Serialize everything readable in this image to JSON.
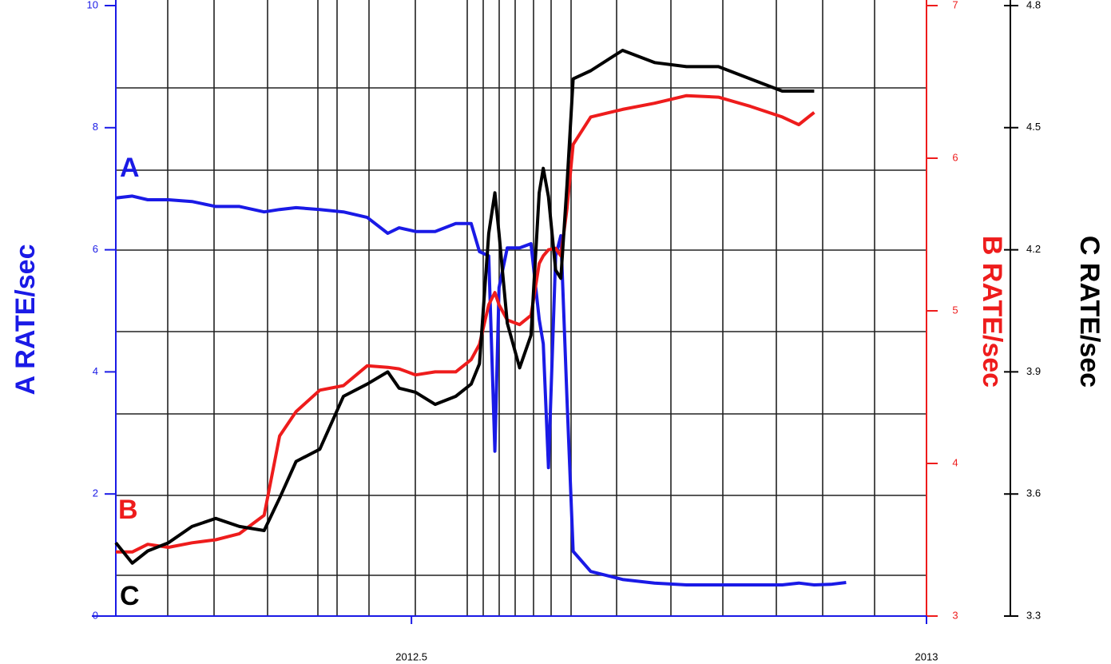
{
  "chart_data": {
    "type": "line",
    "x": [
      2012.213,
      2012.229,
      2012.244,
      2012.264,
      2012.287,
      2012.31,
      2012.333,
      2012.357,
      2012.372,
      2012.388,
      2012.411,
      2012.434,
      2012.457,
      2012.477,
      2012.488,
      2012.504,
      2012.523,
      2012.543,
      2012.558,
      2012.566,
      2012.575,
      2012.581,
      2012.585,
      2012.593,
      2012.605,
      2012.616,
      2012.624,
      2012.628,
      2012.633,
      2012.64,
      2012.645,
      2012.651,
      2012.657,
      2012.674,
      2012.705,
      2012.736,
      2012.767,
      2012.798,
      2012.829,
      2012.86,
      2012.876,
      2012.891,
      2012.907,
      2012.922
    ],
    "series": [
      {
        "name": "A",
        "color": "#1a1ae6",
        "axis": "y",
        "values": [
          6.85,
          6.88,
          6.82,
          6.82,
          6.79,
          6.71,
          6.71,
          6.62,
          6.66,
          6.69,
          6.66,
          6.62,
          6.53,
          6.27,
          6.36,
          6.3,
          6.3,
          6.43,
          6.43,
          5.97,
          5.9,
          2.7,
          5.38,
          6.03,
          6.03,
          6.1,
          4.86,
          4.46,
          2.43,
          5.9,
          6.23,
          3.55,
          1.06,
          0.73,
          0.6,
          0.54,
          0.51,
          0.51,
          0.51,
          0.51,
          0.54,
          0.51,
          0.52,
          0.55
        ]
      },
      {
        "name": "B",
        "color": "#ee1c1c",
        "axis": "y2",
        "values": [
          3.42,
          3.42,
          3.47,
          3.45,
          3.48,
          3.5,
          3.54,
          3.66,
          4.18,
          4.34,
          4.48,
          4.51,
          4.64,
          4.63,
          4.62,
          4.58,
          4.6,
          4.6,
          4.68,
          4.78,
          5.04,
          5.12,
          5.04,
          4.94,
          4.91,
          4.97,
          5.31,
          5.36,
          5.4,
          5.41,
          5.36,
          5.67,
          6.09,
          6.27,
          6.32,
          6.36,
          6.41,
          6.4,
          6.34,
          6.27,
          6.22,
          6.3,
          null,
          null
        ]
      },
      {
        "name": "C",
        "color": "#000000",
        "axis": "y3",
        "values": [
          3.48,
          3.43,
          3.46,
          3.48,
          3.52,
          3.54,
          3.52,
          3.51,
          3.59,
          3.68,
          3.71,
          3.84,
          3.87,
          3.9,
          3.86,
          3.85,
          3.82,
          3.84,
          3.87,
          3.92,
          4.24,
          4.34,
          4.24,
          4.02,
          3.91,
          3.99,
          4.34,
          4.4,
          4.33,
          4.15,
          4.13,
          4.36,
          4.62,
          4.64,
          4.69,
          4.66,
          4.65,
          4.65,
          4.62,
          4.59,
          4.59,
          4.59,
          null,
          null
        ]
      }
    ],
    "ylabel": "A RATE/sec",
    "y2label": "B RATE/sec",
    "y3label": "C RATE/sec",
    "xlim": [
      2012.213,
      2013
    ],
    "xticks": [
      2012.5,
      2013
    ],
    "ylim": [
      0,
      10
    ],
    "yticks": [
      0,
      2,
      4,
      6,
      8,
      10
    ],
    "y2lim": [
      3,
      7
    ],
    "y2ticks": [
      3,
      4,
      5,
      6,
      7
    ],
    "y3lim": [
      3.3,
      4.8
    ],
    "y3ticks": [
      3.3,
      3.6,
      3.9,
      4.2,
      4.5,
      4.8
    ],
    "grid": true
  }
}
